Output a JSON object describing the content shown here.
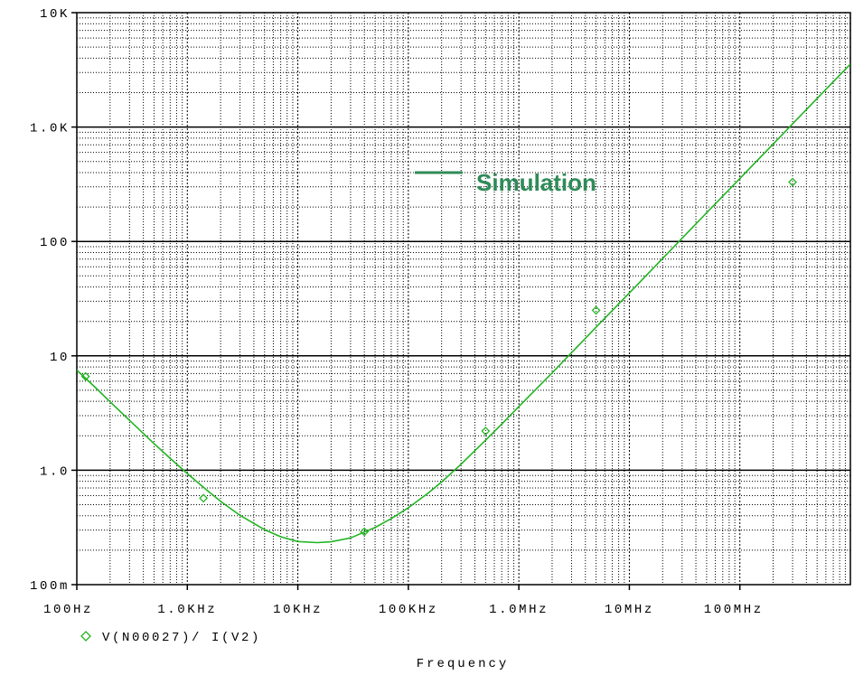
{
  "colors": {
    "trace": "#22b422",
    "marker": "#22b422",
    "annotation": "#2e8b57",
    "grid_major": "#000000",
    "grid_minor": "#000000",
    "background": "#ffffff"
  },
  "chart_data": {
    "type": "line",
    "xlabel": "Frequency",
    "ylabel": "",
    "x_scale": "log",
    "y_scale": "log",
    "xlim": [
      100,
      1000000000
    ],
    "ylim": [
      0.1,
      10000
    ],
    "grid": true,
    "x_ticks": [
      {
        "value": 100,
        "label": "100Hz"
      },
      {
        "value": 1000,
        "label": "1.0KHz"
      },
      {
        "value": 10000,
        "label": "10KHz"
      },
      {
        "value": 100000,
        "label": "100KHz"
      },
      {
        "value": 1000000,
        "label": "1.0MHz"
      },
      {
        "value": 10000000,
        "label": "10MHz"
      },
      {
        "value": 100000000,
        "label": "100MHz"
      }
    ],
    "y_ticks": [
      {
        "value": 10000,
        "label": "10K"
      },
      {
        "value": 1000,
        "label": "1.0K"
      },
      {
        "value": 100,
        "label": "100"
      },
      {
        "value": 10,
        "label": "10"
      },
      {
        "value": 1,
        "label": "1.0"
      },
      {
        "value": 0.1,
        "label": "100m"
      }
    ],
    "series": [
      {
        "name": "V(N00027)/ I(V2)",
        "marker": "diamond",
        "x": [
          100,
          150,
          200,
          300,
          500,
          700,
          1000,
          1500,
          2000,
          3000,
          5000,
          7000,
          10000,
          15000,
          20000,
          30000,
          50000,
          70000,
          100000,
          150000,
          200000,
          300000,
          500000,
          700000,
          1000000,
          2000000,
          5000000,
          10000000,
          20000000,
          50000000,
          100000000,
          200000000,
          500000000,
          1000000000
        ],
        "values": [
          7.5,
          5.2,
          3.96,
          2.73,
          1.71,
          1.27,
          0.935,
          0.67,
          0.535,
          0.403,
          0.302,
          0.262,
          0.238,
          0.233,
          0.237,
          0.256,
          0.316,
          0.378,
          0.47,
          0.628,
          0.79,
          1.13,
          1.83,
          2.53,
          3.6,
          7.1,
          17.8,
          35.5,
          71,
          178,
          355,
          710,
          1780,
          3550
        ],
        "marker_x": [
          120,
          1400,
          40000,
          500000,
          5000000,
          300000000
        ],
        "marker_values": [
          6.6,
          0.57,
          0.29,
          2.2,
          25,
          330
        ]
      }
    ],
    "annotations": [
      {
        "text": "Simulation"
      }
    ]
  }
}
